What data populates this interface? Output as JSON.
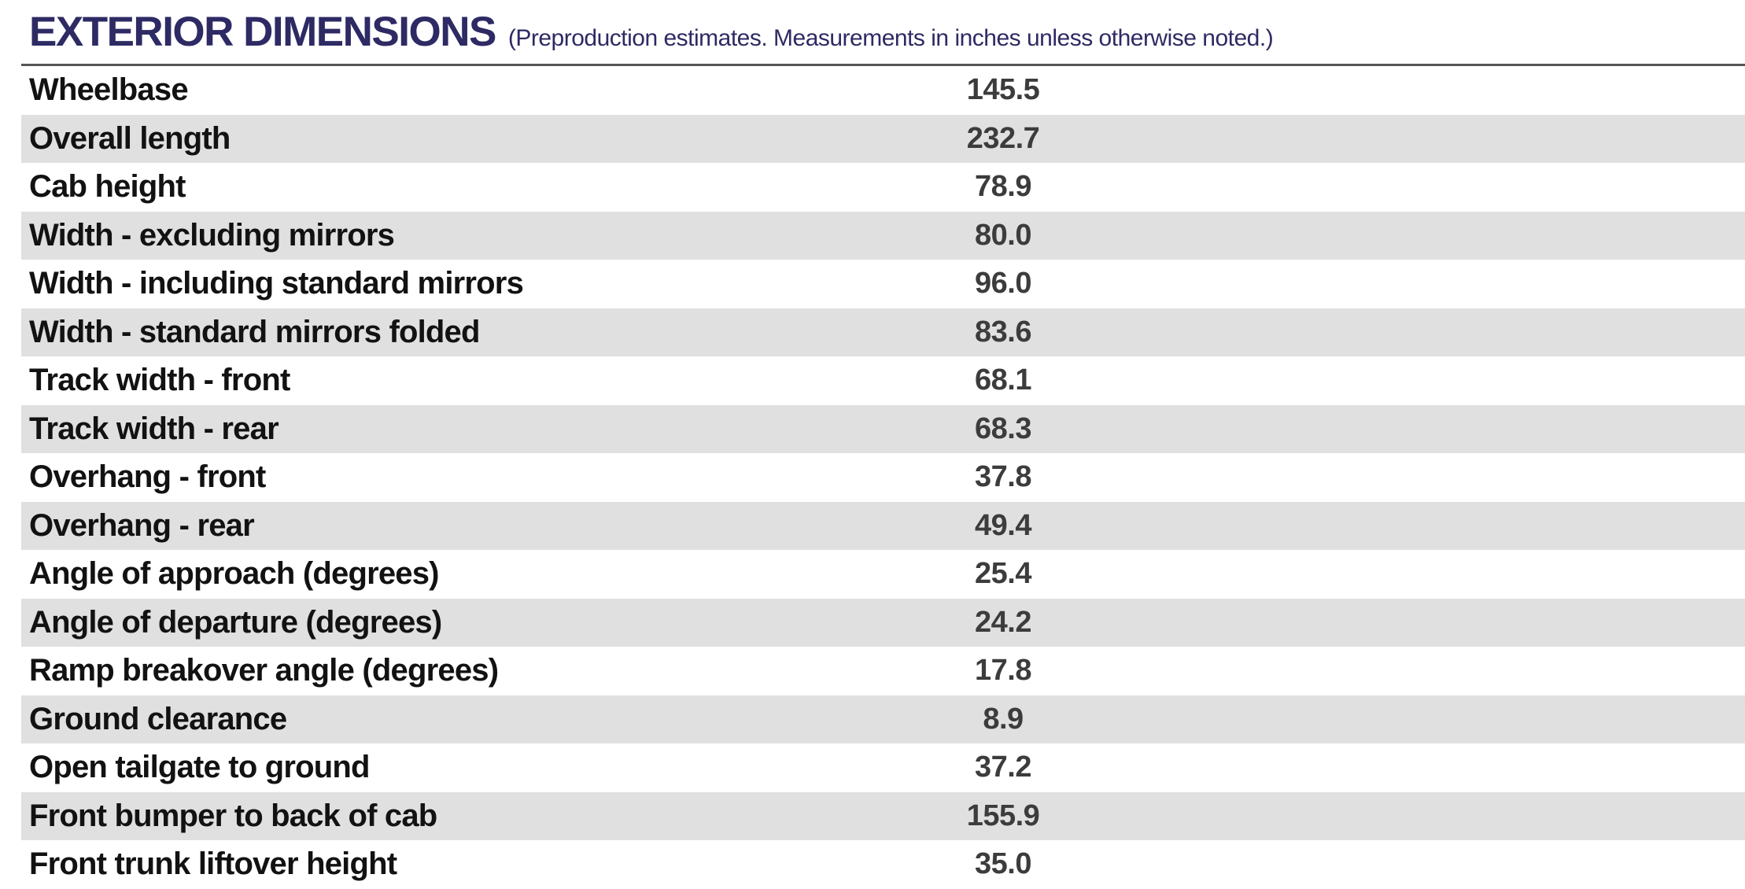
{
  "header": {
    "title": "EXTERIOR DIMENSIONS",
    "subtitle": "(Preproduction estimates. Measurements in inches unless otherwise noted.)"
  },
  "table": {
    "rows": [
      {
        "label": "Wheelbase",
        "value": "145.5"
      },
      {
        "label": "Overall length",
        "value": "232.7"
      },
      {
        "label": "Cab height",
        "value": "78.9"
      },
      {
        "label": "Width - excluding mirrors",
        "value": "80.0"
      },
      {
        "label": "Width - including standard mirrors",
        "value": "96.0"
      },
      {
        "label": "Width - standard mirrors folded",
        "value": "83.6"
      },
      {
        "label": "Track width - front",
        "value": "68.1"
      },
      {
        "label": "Track width - rear",
        "value": "68.3"
      },
      {
        "label": "Overhang - front",
        "value": "37.8"
      },
      {
        "label": "Overhang - rear",
        "value": "49.4"
      },
      {
        "label": "Angle of approach (degrees)",
        "value": "25.4"
      },
      {
        "label": "Angle of departure (degrees)",
        "value": "24.2"
      },
      {
        "label": "Ramp breakover angle (degrees)",
        "value": "17.8"
      },
      {
        "label": "Ground clearance",
        "value": "8.9"
      },
      {
        "label": "Open tailgate to ground",
        "value": "37.2"
      },
      {
        "label": "Front bumper to back of cab",
        "value": "155.9"
      },
      {
        "label": "Front trunk liftover height",
        "value": "35.0"
      }
    ]
  },
  "colors": {
    "title_navy": "#2d2a64",
    "row_stripe": "#e0e0e0",
    "rule": "#555555",
    "label_text": "#121212",
    "value_text": "#3c3c3c"
  }
}
